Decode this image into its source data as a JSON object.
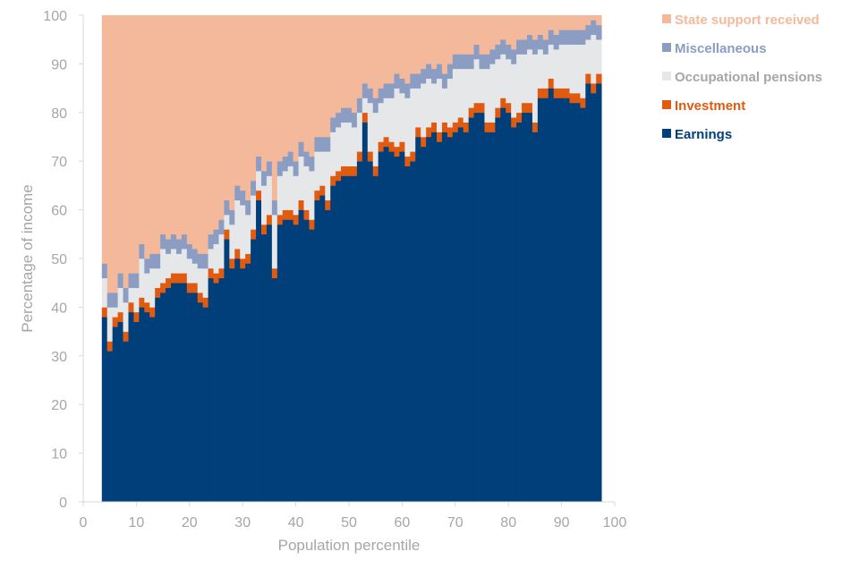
{
  "chart_data": {
    "type": "bar",
    "stacked": true,
    "title": "",
    "xlabel": "Population percentile",
    "ylabel": "Percentage of income",
    "xlim": [
      0,
      100
    ],
    "ylim": [
      0,
      100
    ],
    "xticks": [
      "0",
      "10",
      "20",
      "30",
      "40",
      "50",
      "60",
      "70",
      "80",
      "90",
      "100"
    ],
    "yticks": [
      "0",
      "10",
      "20",
      "30",
      "40",
      "50",
      "60",
      "70",
      "80",
      "90",
      "100"
    ],
    "grid": false,
    "legend_position": "right",
    "x": [
      4,
      5,
      6,
      7,
      8,
      9,
      10,
      11,
      12,
      13,
      14,
      15,
      16,
      17,
      18,
      19,
      20,
      21,
      22,
      23,
      24,
      25,
      26,
      27,
      28,
      29,
      30,
      31,
      32,
      33,
      34,
      35,
      36,
      37,
      38,
      39,
      40,
      41,
      42,
      43,
      44,
      45,
      46,
      47,
      48,
      49,
      50,
      51,
      52,
      53,
      54,
      55,
      56,
      57,
      58,
      59,
      60,
      61,
      62,
      63,
      64,
      65,
      66,
      67,
      68,
      69,
      70,
      71,
      72,
      73,
      74,
      75,
      76,
      77,
      78,
      79,
      80,
      81,
      82,
      83,
      84,
      85,
      86,
      87,
      88,
      89,
      90,
      91,
      92,
      93,
      94,
      95,
      96,
      97
    ],
    "series": [
      {
        "name": "Earnings",
        "color": "#003f7a",
        "values": [
          38,
          31,
          36,
          37,
          33,
          39,
          37,
          40,
          39,
          38,
          42,
          43,
          44,
          45,
          45,
          45,
          43,
          43,
          41,
          40,
          46,
          45,
          46,
          54,
          48,
          50,
          48,
          49,
          54,
          62,
          55,
          57,
          46,
          57,
          58,
          58,
          57,
          60,
          58,
          56,
          62,
          63,
          60,
          65,
          66,
          67,
          67,
          67,
          70,
          78,
          70,
          67,
          72,
          73,
          72,
          71,
          72,
          69,
          70,
          75,
          73,
          75,
          76,
          74,
          76,
          75,
          76,
          77,
          76,
          79,
          80,
          80,
          76,
          76,
          79,
          81,
          80,
          77,
          78,
          80,
          80,
          76,
          83,
          83,
          85,
          83,
          83,
          83,
          82,
          82,
          81,
          86,
          84,
          86
        ]
      },
      {
        "name": "Investment",
        "color": "#e05a0f",
        "values": [
          2,
          2,
          2,
          2,
          2,
          2,
          2,
          2,
          2,
          2,
          2,
          2,
          2,
          2,
          2,
          2,
          2,
          2,
          2,
          2,
          2,
          2,
          2,
          2,
          2,
          2,
          2,
          2,
          2,
          2,
          2,
          2,
          2,
          2,
          2,
          2,
          2,
          2,
          2,
          2,
          2,
          2,
          2,
          2,
          2,
          2,
          2,
          2,
          2,
          2,
          2,
          2,
          2,
          2,
          2,
          2,
          2,
          2,
          2,
          2,
          2,
          2,
          2,
          2,
          2,
          2,
          2,
          2,
          2,
          2,
          2,
          2,
          2,
          2,
          2,
          2,
          2,
          2,
          2,
          2,
          2,
          2,
          2,
          2,
          2,
          2,
          2,
          2,
          2,
          2,
          2,
          2,
          2,
          2
        ]
      },
      {
        "name": "Occupational pensions",
        "color": "#e6e7e9",
        "values": [
          6,
          7,
          2,
          5,
          6,
          3,
          5,
          8,
          6,
          8,
          4,
          7,
          5,
          5,
          4,
          5,
          5,
          4,
          5,
          6,
          4,
          6,
          7,
          3,
          7,
          10,
          11,
          8,
          7,
          4,
          8,
          8,
          11,
          8,
          8,
          9,
          8,
          9,
          9,
          10,
          8,
          7,
          10,
          9,
          9,
          9,
          9,
          8,
          8,
          3,
          10,
          11,
          8,
          8,
          9,
          12,
          10,
          12,
          13,
          8,
          11,
          10,
          8,
          11,
          7,
          10,
          11,
          10,
          11,
          8,
          9,
          7,
          11,
          12,
          10,
          9,
          9,
          11,
          12,
          10,
          11,
          14,
          8,
          7,
          7,
          8,
          9,
          9,
          10,
          10,
          11,
          7,
          10,
          7
        ]
      },
      {
        "name": "Miscellaneous",
        "color": "#8b9dc3",
        "values": [
          3,
          3,
          3,
          3,
          3,
          3,
          3,
          3,
          3,
          3,
          3,
          3,
          3,
          3,
          3,
          3,
          3,
          3,
          3,
          3,
          3,
          3,
          3,
          3,
          3,
          3,
          3,
          3,
          3,
          3,
          3,
          3,
          3,
          3,
          3,
          3,
          3,
          3,
          3,
          3,
          3,
          3,
          3,
          3,
          3,
          3,
          3,
          3,
          3,
          3,
          3,
          3,
          3,
          3,
          3,
          3,
          3,
          3,
          3,
          3,
          3,
          3,
          3,
          3,
          3,
          3,
          3,
          3,
          3,
          3,
          3,
          3,
          3,
          3,
          3,
          3,
          3,
          3,
          3,
          3,
          3,
          3,
          3,
          3,
          3,
          3,
          3,
          3,
          3,
          3,
          3,
          3,
          3,
          3
        ]
      },
      {
        "name": "State support received",
        "color": "#f4b99a",
        "values": [
          51,
          57,
          57,
          53,
          56,
          53,
          53,
          47,
          50,
          49,
          49,
          45,
          46,
          45,
          46,
          45,
          47,
          48,
          49,
          49,
          45,
          44,
          42,
          38,
          40,
          35,
          36,
          38,
          34,
          29,
          32,
          30,
          38,
          30,
          29,
          28,
          30,
          26,
          28,
          29,
          25,
          25,
          25,
          21,
          20,
          19,
          19,
          20,
          17,
          14,
          15,
          17,
          15,
          14,
          14,
          12,
          13,
          14,
          12,
          12,
          11,
          10,
          11,
          10,
          12,
          10,
          8,
          8,
          8,
          8,
          6,
          8,
          8,
          7,
          6,
          5,
          6,
          7,
          5,
          5,
          4,
          5,
          4,
          5,
          3,
          4,
          3,
          3,
          3,
          3,
          3,
          2,
          1,
          2
        ]
      }
    ],
    "legend": [
      "State support received",
      "Miscellaneous",
      "Occupational pensions",
      "Investment",
      "Earnings"
    ]
  }
}
